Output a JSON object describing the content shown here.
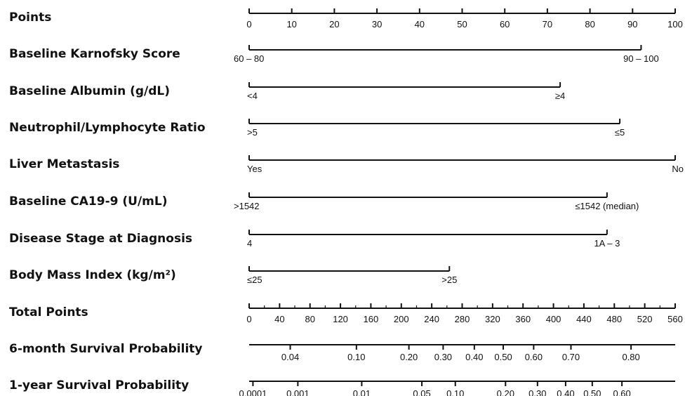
{
  "chart_data": {
    "type": "nomogram",
    "rows": [
      {
        "label": "Points",
        "kind": "scale",
        "ticks": [
          {
            "value": 0,
            "label": "0"
          },
          {
            "value": 10,
            "label": "10"
          },
          {
            "value": 20,
            "label": "20"
          },
          {
            "value": 30,
            "label": "30"
          },
          {
            "value": 40,
            "label": "40"
          },
          {
            "value": 50,
            "label": "50"
          },
          {
            "value": 60,
            "label": "60"
          },
          {
            "value": 70,
            "label": "70"
          },
          {
            "value": 80,
            "label": "80"
          },
          {
            "value": 90,
            "label": "90"
          },
          {
            "value": 100,
            "label": "100"
          }
        ],
        "minor_ticks": []
      },
      {
        "label": "Baseline Karnofsky Score",
        "kind": "categorical",
        "points_start": 0,
        "points_end": 92,
        "levels": [
          {
            "value": 0,
            "label": "60 – 80"
          },
          {
            "value": 92,
            "label": "90 – 100"
          }
        ]
      },
      {
        "label": "Baseline Albumin (g/dL)",
        "kind": "categorical",
        "points_start": 0,
        "points_end": 73,
        "levels": [
          {
            "value": 0,
            "label": "<4"
          },
          {
            "value": 73,
            "label": "≥4"
          }
        ]
      },
      {
        "label": "Neutrophil/Lymphocyte Ratio",
        "kind": "categorical",
        "points_start": 0,
        "points_end": 87,
        "levels": [
          {
            "value": 0,
            "label": ">5"
          },
          {
            "value": 87,
            "label": "≤5"
          }
        ]
      },
      {
        "label": "Liver Metastasis",
        "kind": "categorical",
        "points_start": 0,
        "points_end": 100,
        "levels": [
          {
            "value": 0,
            "label": "Yes"
          },
          {
            "value": 100,
            "label": "No"
          }
        ]
      },
      {
        "label": "Baseline CA19-9 (U/mL)",
        "kind": "categorical",
        "points_start": 0,
        "points_end": 84,
        "levels": [
          {
            "value": 0,
            "label": ">1542"
          },
          {
            "value": 84,
            "label": "≤1542 (median)"
          }
        ]
      },
      {
        "label": "Disease Stage at Diagnosis",
        "kind": "categorical",
        "points_start": 0,
        "points_end": 84,
        "levels": [
          {
            "value": 0,
            "label": "4"
          },
          {
            "value": 84,
            "label": "1A – 3"
          }
        ]
      },
      {
        "label": "Body Mass Index (kg/m²)",
        "kind": "categorical",
        "points_start": 0,
        "points_end": 47,
        "levels": [
          {
            "value": 0,
            "label": "≤25"
          },
          {
            "value": 47,
            "label": ">25"
          }
        ]
      },
      {
        "label": "Total Points",
        "kind": "scale",
        "ticks": [
          {
            "value": 0,
            "label": "0"
          },
          {
            "value": 40,
            "label": "40"
          },
          {
            "value": 80,
            "label": "80"
          },
          {
            "value": 120,
            "label": "120"
          },
          {
            "value": 160,
            "label": "160"
          },
          {
            "value": 200,
            "label": "200"
          },
          {
            "value": 240,
            "label": "240"
          },
          {
            "value": 280,
            "label": "280"
          },
          {
            "value": 320,
            "label": "320"
          },
          {
            "value": 360,
            "label": "360"
          },
          {
            "value": 400,
            "label": "400"
          },
          {
            "value": 440,
            "label": "440"
          },
          {
            "value": 480,
            "label": "480"
          },
          {
            "value": 520,
            "label": "520"
          },
          {
            "value": 560,
            "label": "560"
          }
        ],
        "minor_ticks": [
          20,
          60,
          100,
          140,
          180,
          220,
          260,
          300,
          340,
          380,
          420,
          460,
          500,
          540
        ]
      },
      {
        "label": "6-month Survival Probability",
        "kind": "prob",
        "ticks": [
          {
            "value": 54,
            "label": "0.04"
          },
          {
            "value": 141,
            "label": "0.10"
          },
          {
            "value": 210,
            "label": "0.20"
          },
          {
            "value": 255,
            "label": "0.30"
          },
          {
            "value": 296,
            "label": "0.40"
          },
          {
            "value": 334,
            "label": "0.50"
          },
          {
            "value": 374,
            "label": "0.60"
          },
          {
            "value": 423,
            "label": "0.70"
          },
          {
            "value": 502,
            "label": "0.80"
          }
        ]
      },
      {
        "label": "1-year Survival Probability",
        "kind": "prob",
        "ticks": [
          {
            "value": 5,
            "label": "0.0001"
          },
          {
            "value": 64,
            "label": "0.001"
          },
          {
            "value": 148,
            "label": "0.01"
          },
          {
            "value": 227,
            "label": "0.05"
          },
          {
            "value": 271,
            "label": "0.10"
          },
          {
            "value": 337,
            "label": "0.20"
          },
          {
            "value": 379,
            "label": "0.30"
          },
          {
            "value": 416,
            "label": "0.40"
          },
          {
            "value": 451,
            "label": "0.50"
          },
          {
            "value": 490,
            "label": "0.60"
          }
        ]
      }
    ]
  }
}
